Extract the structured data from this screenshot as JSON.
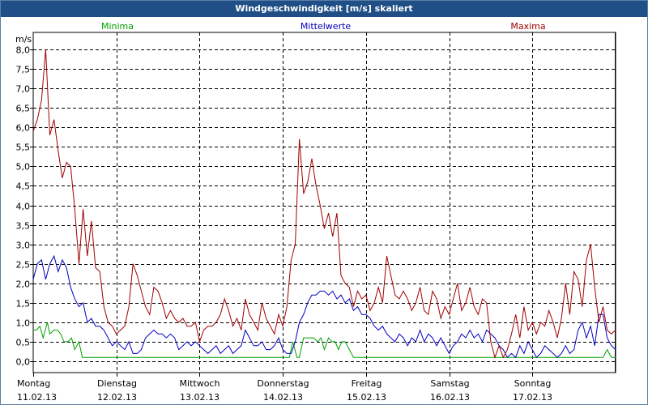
{
  "window": {
    "title": "Windgeschwindigkeit [m/s] skaliert"
  },
  "colors": {
    "minima": "#00a000",
    "mean": "#0000c0",
    "maxima": "#a00000",
    "titlebar": "#1f4f86"
  },
  "chart_data": {
    "type": "line",
    "title": "Windgeschwindigkeit [m/s] skaliert",
    "ylabel": "m/s",
    "xlabel": "",
    "ylim": [
      0.0,
      8.0
    ],
    "xlim": [
      0,
      7
    ],
    "grid": true,
    "legend_placement": "top",
    "y_ticks": [
      "0,0",
      "0,5",
      "1,0",
      "1,5",
      "2,0",
      "2,5",
      "3,0",
      "3,5",
      "4,0",
      "4,5",
      "5,0",
      "5,5",
      "6,0",
      "6,5",
      "7,0",
      "7,5",
      "8,0"
    ],
    "x_ticks": [
      {
        "x": 0,
        "day": "Montag",
        "date": "11.02.13"
      },
      {
        "x": 1,
        "day": "Dienstag",
        "date": "12.02.13"
      },
      {
        "x": 2,
        "day": "Mittwoch",
        "date": "13.02.13"
      },
      {
        "x": 3,
        "day": "Donnerstag",
        "date": "14.02.13"
      },
      {
        "x": 4,
        "day": "Freitag",
        "date": "15.02.13"
      },
      {
        "x": 5,
        "day": "Samstag",
        "date": "16.02.13"
      },
      {
        "x": 6,
        "day": "Sonntag",
        "date": "17.02.13"
      }
    ],
    "series": [
      {
        "name": "Minima",
        "color": "#00a000",
        "x": [
          0,
          0.04,
          0.08,
          0.12,
          0.17,
          0.2,
          0.25,
          0.29,
          0.33,
          0.37,
          0.42,
          0.46,
          0.5,
          0.55,
          0.59,
          0.63,
          0.67,
          0.71,
          0.75,
          0.8,
          2.0,
          3.0,
          3.04,
          3.08,
          3.12,
          3.17,
          3.2,
          3.25,
          3.29,
          3.33,
          3.37,
          3.42,
          3.46,
          3.5,
          3.55,
          3.59,
          3.63,
          3.67,
          3.71,
          3.75,
          3.8,
          3.85,
          3.9,
          4.0,
          5.0,
          6.0,
          6.85,
          6.9,
          6.95,
          7.0
        ],
        "y": [
          0.8,
          0.8,
          0.9,
          0.6,
          1.0,
          0.7,
          0.8,
          0.8,
          0.7,
          0.5,
          0.5,
          0.6,
          0.3,
          0.5,
          0.1,
          0.1,
          0.1,
          0.1,
          0.1,
          0.1,
          0.1,
          0.1,
          0.1,
          0.1,
          0.5,
          0.1,
          0.1,
          0.6,
          0.6,
          0.6,
          0.6,
          0.5,
          0.6,
          0.3,
          0.6,
          0.5,
          0.5,
          0.3,
          0.5,
          0.5,
          0.3,
          0.1,
          0.1,
          0.1,
          0.1,
          0.1,
          0.1,
          0.3,
          0.1,
          0.1
        ]
      },
      {
        "name": "Mittelwerte",
        "color": "#0000c0",
        "x": [
          0,
          0.05,
          0.1,
          0.15,
          0.2,
          0.25,
          0.3,
          0.35,
          0.4,
          0.45,
          0.5,
          0.55,
          0.6,
          0.65,
          0.7,
          0.75,
          0.8,
          0.85,
          0.9,
          0.95,
          1.0,
          1.05,
          1.1,
          1.15,
          1.2,
          1.25,
          1.3,
          1.35,
          1.4,
          1.45,
          1.5,
          1.55,
          1.6,
          1.65,
          1.7,
          1.75,
          1.8,
          1.85,
          1.9,
          1.95,
          2.0,
          2.05,
          2.1,
          2.15,
          2.2,
          2.25,
          2.3,
          2.35,
          2.4,
          2.45,
          2.5,
          2.55,
          2.6,
          2.65,
          2.7,
          2.75,
          2.8,
          2.85,
          2.9,
          2.95,
          3.0,
          3.05,
          3.1,
          3.15,
          3.2,
          3.25,
          3.3,
          3.35,
          3.4,
          3.45,
          3.5,
          3.55,
          3.6,
          3.65,
          3.7,
          3.75,
          3.8,
          3.85,
          3.9,
          3.95,
          4.0,
          4.05,
          4.1,
          4.15,
          4.2,
          4.25,
          4.3,
          4.35,
          4.4,
          4.45,
          4.5,
          4.55,
          4.6,
          4.65,
          4.7,
          4.75,
          4.8,
          4.85,
          4.9,
          4.95,
          5.0,
          5.05,
          5.1,
          5.15,
          5.2,
          5.25,
          5.3,
          5.35,
          5.4,
          5.45,
          5.5,
          5.55,
          5.6,
          5.65,
          5.7,
          5.75,
          5.8,
          5.85,
          5.9,
          5.95,
          6.0,
          6.05,
          6.1,
          6.15,
          6.2,
          6.25,
          6.3,
          6.35,
          6.4,
          6.45,
          6.5,
          6.55,
          6.6,
          6.65,
          6.7,
          6.75,
          6.8,
          6.85,
          6.9,
          6.95,
          7.0
        ],
        "y": [
          2.1,
          2.5,
          2.6,
          2.1,
          2.5,
          2.7,
          2.3,
          2.6,
          2.4,
          1.9,
          1.6,
          1.4,
          1.5,
          1.0,
          1.1,
          0.9,
          0.9,
          0.8,
          0.6,
          0.4,
          0.5,
          0.4,
          0.3,
          0.5,
          0.2,
          0.2,
          0.3,
          0.6,
          0.7,
          0.8,
          0.7,
          0.7,
          0.6,
          0.7,
          0.6,
          0.3,
          0.4,
          0.5,
          0.4,
          0.5,
          0.4,
          0.3,
          0.2,
          0.3,
          0.4,
          0.2,
          0.3,
          0.4,
          0.2,
          0.3,
          0.4,
          0.8,
          0.6,
          0.4,
          0.4,
          0.5,
          0.3,
          0.3,
          0.4,
          0.6,
          0.3,
          0.2,
          0.2,
          0.5,
          1.0,
          1.2,
          1.5,
          1.7,
          1.7,
          1.8,
          1.8,
          1.7,
          1.8,
          1.6,
          1.7,
          1.5,
          1.6,
          1.3,
          1.4,
          1.2,
          1.2,
          1.1,
          0.9,
          0.8,
          0.9,
          0.7,
          0.6,
          0.5,
          0.7,
          0.6,
          0.4,
          0.6,
          0.5,
          0.8,
          0.5,
          0.7,
          0.6,
          0.4,
          0.6,
          0.4,
          0.2,
          0.4,
          0.5,
          0.7,
          0.6,
          0.8,
          0.6,
          0.7,
          0.5,
          0.8,
          0.7,
          0.6,
          0.4,
          0.3,
          0.1,
          0.2,
          0.1,
          0.4,
          0.2,
          0.5,
          0.3,
          0.1,
          0.2,
          0.4,
          0.3,
          0.2,
          0.1,
          0.2,
          0.4,
          0.2,
          0.3,
          0.8,
          1.0,
          0.6,
          0.9,
          0.4,
          1.2,
          1.2,
          0.6,
          0.4,
          0.3
        ]
      },
      {
        "name": "Maxima",
        "color": "#a00000",
        "x": [
          0,
          0.05,
          0.1,
          0.15,
          0.2,
          0.25,
          0.3,
          0.35,
          0.4,
          0.45,
          0.5,
          0.55,
          0.6,
          0.65,
          0.7,
          0.75,
          0.8,
          0.85,
          0.9,
          0.95,
          1.0,
          1.05,
          1.1,
          1.15,
          1.2,
          1.25,
          1.3,
          1.35,
          1.4,
          1.45,
          1.5,
          1.55,
          1.6,
          1.65,
          1.7,
          1.75,
          1.8,
          1.85,
          1.9,
          1.95,
          2.0,
          2.05,
          2.1,
          2.15,
          2.2,
          2.25,
          2.3,
          2.35,
          2.4,
          2.45,
          2.5,
          2.55,
          2.6,
          2.65,
          2.7,
          2.75,
          2.8,
          2.85,
          2.9,
          2.95,
          3.0,
          3.05,
          3.1,
          3.15,
          3.2,
          3.25,
          3.3,
          3.35,
          3.4,
          3.45,
          3.5,
          3.55,
          3.6,
          3.65,
          3.7,
          3.75,
          3.8,
          3.85,
          3.9,
          3.95,
          4.0,
          4.05,
          4.1,
          4.15,
          4.2,
          4.25,
          4.3,
          4.35,
          4.4,
          4.45,
          4.5,
          4.55,
          4.6,
          4.65,
          4.7,
          4.75,
          4.8,
          4.85,
          4.9,
          4.95,
          5.0,
          5.05,
          5.1,
          5.15,
          5.2,
          5.25,
          5.3,
          5.35,
          5.4,
          5.45,
          5.5,
          5.55,
          5.6,
          5.65,
          5.7,
          5.75,
          5.8,
          5.85,
          5.9,
          5.95,
          6.0,
          6.05,
          6.1,
          6.15,
          6.2,
          6.25,
          6.3,
          6.35,
          6.4,
          6.45,
          6.5,
          6.55,
          6.6,
          6.65,
          6.7,
          6.75,
          6.8,
          6.85,
          6.9,
          6.95,
          7.0
        ],
        "y": [
          5.9,
          6.2,
          6.7,
          8.0,
          5.8,
          6.2,
          5.4,
          4.7,
          5.1,
          5.0,
          3.9,
          2.5,
          3.9,
          2.7,
          3.6,
          2.4,
          2.3,
          1.4,
          1.0,
          0.9,
          0.7,
          0.8,
          0.9,
          1.4,
          2.5,
          2.2,
          1.8,
          1.4,
          1.2,
          1.9,
          1.8,
          1.5,
          1.1,
          1.3,
          1.1,
          1.0,
          1.1,
          0.9,
          0.9,
          1.0,
          0.5,
          0.8,
          0.9,
          0.9,
          1.0,
          1.2,
          1.6,
          1.3,
          0.9,
          1.1,
          0.8,
          1.6,
          1.2,
          1.0,
          0.8,
          1.5,
          1.1,
          0.9,
          0.7,
          1.2,
          0.9,
          1.4,
          2.6,
          3.0,
          5.7,
          4.3,
          4.6,
          5.2,
          4.5,
          4.0,
          3.4,
          3.8,
          3.2,
          3.8,
          2.2,
          2.0,
          1.9,
          1.4,
          1.8,
          1.6,
          1.7,
          1.3,
          1.5,
          1.9,
          1.5,
          2.7,
          2.2,
          1.7,
          1.6,
          1.8,
          1.6,
          1.3,
          1.5,
          1.9,
          1.3,
          1.2,
          1.8,
          1.6,
          1.1,
          1.4,
          1.2,
          1.6,
          2.0,
          1.3,
          1.5,
          1.9,
          1.4,
          1.2,
          1.6,
          1.5,
          0.5,
          0.1,
          0.4,
          0.1,
          0.3,
          0.7,
          1.2,
          0.6,
          1.4,
          0.8,
          1.0,
          0.7,
          1.0,
          0.9,
          1.3,
          1.0,
          0.6,
          1.1,
          2.0,
          1.2,
          2.3,
          2.1,
          1.4,
          2.6,
          3.0,
          1.9,
          1.0,
          1.4,
          0.8,
          0.7,
          0.8
        ]
      }
    ]
  }
}
